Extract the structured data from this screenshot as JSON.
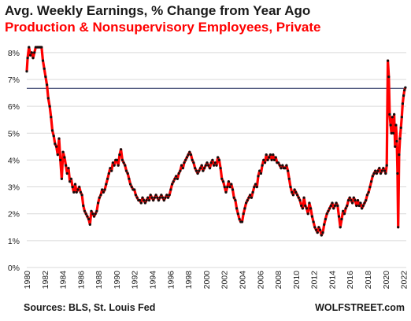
{
  "chart_data": {
    "type": "line",
    "title": "Avg. Weekly Earnings, % Change from Year Ago",
    "subtitle": "Production & Nonsupervisory  Employees, Private",
    "xlabel": "",
    "ylabel": "",
    "x_ticks": [
      "1980",
      "1982",
      "1984",
      "1986",
      "1988",
      "1990",
      "1992",
      "1994",
      "1996",
      "1998",
      "2000",
      "2002",
      "2004",
      "2006",
      "2008",
      "2010",
      "2012",
      "2014",
      "2016",
      "2018",
      "2020",
      "2022"
    ],
    "y_ticks": [
      "0%",
      "1%",
      "2%",
      "3%",
      "4%",
      "5%",
      "6%",
      "7%",
      "8%"
    ],
    "xlim": [
      1980,
      2022.3
    ],
    "ylim": [
      0,
      8.2
    ],
    "grid": "horizontal",
    "reference_line": 6.67,
    "series": [
      {
        "line_color": "#ff0000",
        "marker_color": "#111111",
        "points": [
          [
            1980.0,
            7.3
          ],
          [
            1980.1,
            7.8
          ],
          [
            1980.25,
            8.2
          ],
          [
            1980.4,
            7.9
          ],
          [
            1980.55,
            8.0
          ],
          [
            1980.7,
            7.8
          ],
          [
            1980.85,
            8.0
          ],
          [
            1981.0,
            8.3
          ],
          [
            1981.2,
            8.7
          ],
          [
            1981.35,
            8.7
          ],
          [
            1981.5,
            8.4
          ],
          [
            1981.65,
            8.3
          ],
          [
            1981.8,
            7.7
          ],
          [
            1981.95,
            7.4
          ],
          [
            1982.1,
            7.1
          ],
          [
            1982.25,
            6.8
          ],
          [
            1982.4,
            6.3
          ],
          [
            1982.55,
            6.0
          ],
          [
            1982.7,
            5.6
          ],
          [
            1982.85,
            5.1
          ],
          [
            1983.0,
            4.9
          ],
          [
            1983.15,
            4.6
          ],
          [
            1983.3,
            4.5
          ],
          [
            1983.45,
            4.2
          ],
          [
            1983.6,
            4.8
          ],
          [
            1983.75,
            4.0
          ],
          [
            1983.9,
            3.3
          ],
          [
            1984.05,
            4.3
          ],
          [
            1984.2,
            4.1
          ],
          [
            1984.35,
            3.8
          ],
          [
            1984.5,
            3.5
          ],
          [
            1984.65,
            3.7
          ],
          [
            1984.8,
            3.2
          ],
          [
            1984.95,
            3.3
          ],
          [
            1985.1,
            3.0
          ],
          [
            1985.25,
            2.8
          ],
          [
            1985.4,
            3.1
          ],
          [
            1985.55,
            2.8
          ],
          [
            1985.7,
            2.9
          ],
          [
            1985.85,
            3.0
          ],
          [
            1986.0,
            2.8
          ],
          [
            1986.15,
            2.7
          ],
          [
            1986.3,
            2.3
          ],
          [
            1986.45,
            2.1
          ],
          [
            1986.6,
            2.0
          ],
          [
            1986.75,
            1.9
          ],
          [
            1986.9,
            1.8
          ],
          [
            1987.05,
            1.6
          ],
          [
            1987.2,
            2.1
          ],
          [
            1987.35,
            2.0
          ],
          [
            1987.5,
            1.9
          ],
          [
            1987.65,
            2.0
          ],
          [
            1987.8,
            2.1
          ],
          [
            1987.95,
            2.4
          ],
          [
            1988.1,
            2.6
          ],
          [
            1988.25,
            2.7
          ],
          [
            1988.4,
            2.9
          ],
          [
            1988.55,
            2.8
          ],
          [
            1988.7,
            2.9
          ],
          [
            1988.85,
            3.1
          ],
          [
            1989.0,
            3.3
          ],
          [
            1989.15,
            3.5
          ],
          [
            1989.3,
            3.7
          ],
          [
            1989.45,
            3.6
          ],
          [
            1989.6,
            3.9
          ],
          [
            1989.75,
            3.8
          ],
          [
            1989.9,
            4.0
          ],
          [
            1990.05,
            4.0
          ],
          [
            1990.2,
            3.8
          ],
          [
            1990.35,
            4.2
          ],
          [
            1990.5,
            4.4
          ],
          [
            1990.65,
            4.0
          ],
          [
            1990.8,
            3.9
          ],
          [
            1990.95,
            3.8
          ],
          [
            1991.1,
            3.6
          ],
          [
            1991.25,
            3.5
          ],
          [
            1991.4,
            3.3
          ],
          [
            1991.55,
            3.1
          ],
          [
            1991.7,
            3.0
          ],
          [
            1991.85,
            2.9
          ],
          [
            1992.0,
            2.9
          ],
          [
            1992.15,
            2.7
          ],
          [
            1992.3,
            2.6
          ],
          [
            1992.45,
            2.5
          ],
          [
            1992.6,
            2.5
          ],
          [
            1992.75,
            2.4
          ],
          [
            1992.9,
            2.6
          ],
          [
            1993.05,
            2.5
          ],
          [
            1993.2,
            2.4
          ],
          [
            1993.35,
            2.5
          ],
          [
            1993.5,
            2.6
          ],
          [
            1993.65,
            2.5
          ],
          [
            1993.8,
            2.7
          ],
          [
            1993.95,
            2.6
          ],
          [
            1994.1,
            2.5
          ],
          [
            1994.25,
            2.6
          ],
          [
            1994.4,
            2.7
          ],
          [
            1994.55,
            2.6
          ],
          [
            1994.7,
            2.5
          ],
          [
            1994.85,
            2.6
          ],
          [
            1995.0,
            2.7
          ],
          [
            1995.15,
            2.6
          ],
          [
            1995.3,
            2.5
          ],
          [
            1995.45,
            2.6
          ],
          [
            1995.6,
            2.7
          ],
          [
            1995.75,
            2.6
          ],
          [
            1995.9,
            2.7
          ],
          [
            1996.05,
            2.9
          ],
          [
            1996.2,
            3.1
          ],
          [
            1996.35,
            3.2
          ],
          [
            1996.5,
            3.3
          ],
          [
            1996.65,
            3.4
          ],
          [
            1996.8,
            3.3
          ],
          [
            1996.95,
            3.5
          ],
          [
            1997.1,
            3.6
          ],
          [
            1997.25,
            3.8
          ],
          [
            1997.4,
            3.7
          ],
          [
            1997.55,
            3.9
          ],
          [
            1997.7,
            4.0
          ],
          [
            1997.85,
            4.1
          ],
          [
            1998.0,
            4.2
          ],
          [
            1998.15,
            4.3
          ],
          [
            1998.3,
            4.2
          ],
          [
            1998.45,
            4.0
          ],
          [
            1998.6,
            3.9
          ],
          [
            1998.75,
            3.7
          ],
          [
            1998.9,
            3.6
          ],
          [
            1999.05,
            3.5
          ],
          [
            1999.2,
            3.6
          ],
          [
            1999.35,
            3.7
          ],
          [
            1999.5,
            3.8
          ],
          [
            1999.65,
            3.6
          ],
          [
            1999.8,
            3.7
          ],
          [
            1999.95,
            3.8
          ],
          [
            2000.1,
            3.9
          ],
          [
            2000.25,
            3.8
          ],
          [
            2000.4,
            3.7
          ],
          [
            2000.55,
            3.9
          ],
          [
            2000.7,
            4.0
          ],
          [
            2000.85,
            3.8
          ],
          [
            2001.0,
            3.9
          ],
          [
            2001.15,
            3.8
          ],
          [
            2001.3,
            4.1
          ],
          [
            2001.45,
            4.0
          ],
          [
            2001.6,
            3.7
          ],
          [
            2001.75,
            3.3
          ],
          [
            2001.9,
            3.2
          ],
          [
            2002.05,
            3.0
          ],
          [
            2002.2,
            2.8
          ],
          [
            2002.35,
            3.0
          ],
          [
            2002.5,
            3.2
          ],
          [
            2002.65,
            3.0
          ],
          [
            2002.8,
            3.1
          ],
          [
            2002.95,
            2.9
          ],
          [
            2003.1,
            2.6
          ],
          [
            2003.25,
            2.5
          ],
          [
            2003.4,
            2.2
          ],
          [
            2003.55,
            2.0
          ],
          [
            2003.7,
            1.8
          ],
          [
            2003.85,
            1.7
          ],
          [
            2004.0,
            1.7
          ],
          [
            2004.15,
            2.0
          ],
          [
            2004.3,
            2.2
          ],
          [
            2004.45,
            2.4
          ],
          [
            2004.6,
            2.5
          ],
          [
            2004.75,
            2.6
          ],
          [
            2004.9,
            2.7
          ],
          [
            2005.05,
            2.6
          ],
          [
            2005.2,
            2.8
          ],
          [
            2005.35,
            3.0
          ],
          [
            2005.5,
            3.1
          ],
          [
            2005.65,
            3.0
          ],
          [
            2005.8,
            3.4
          ],
          [
            2005.95,
            3.6
          ],
          [
            2006.1,
            3.5
          ],
          [
            2006.25,
            3.8
          ],
          [
            2006.4,
            4.0
          ],
          [
            2006.55,
            3.9
          ],
          [
            2006.7,
            4.2
          ],
          [
            2006.85,
            4.0
          ],
          [
            2007.0,
            4.1
          ],
          [
            2007.15,
            4.2
          ],
          [
            2007.3,
            4.0
          ],
          [
            2007.45,
            4.2
          ],
          [
            2007.6,
            4.0
          ],
          [
            2007.75,
            4.1
          ],
          [
            2007.9,
            3.9
          ],
          [
            2008.05,
            3.9
          ],
          [
            2008.2,
            3.8
          ],
          [
            2008.35,
            3.7
          ],
          [
            2008.5,
            3.8
          ],
          [
            2008.65,
            3.7
          ],
          [
            2008.8,
            3.7
          ],
          [
            2008.95,
            3.8
          ],
          [
            2009.1,
            3.6
          ],
          [
            2009.25,
            3.3
          ],
          [
            2009.4,
            3.0
          ],
          [
            2009.55,
            2.8
          ],
          [
            2009.7,
            2.7
          ],
          [
            2009.85,
            2.9
          ],
          [
            2010.0,
            2.8
          ],
          [
            2010.15,
            2.7
          ],
          [
            2010.3,
            2.6
          ],
          [
            2010.45,
            2.5
          ],
          [
            2010.6,
            2.3
          ],
          [
            2010.75,
            2.2
          ],
          [
            2010.9,
            2.6
          ],
          [
            2011.05,
            2.3
          ],
          [
            2011.2,
            2.2
          ],
          [
            2011.35,
            2.0
          ],
          [
            2011.5,
            2.4
          ],
          [
            2011.65,
            2.2
          ],
          [
            2011.8,
            1.9
          ],
          [
            2011.95,
            1.7
          ],
          [
            2012.1,
            1.5
          ],
          [
            2012.25,
            1.4
          ],
          [
            2012.4,
            1.3
          ],
          [
            2012.55,
            1.5
          ],
          [
            2012.7,
            1.4
          ],
          [
            2012.85,
            1.2
          ],
          [
            2013.0,
            1.3
          ],
          [
            2013.15,
            1.6
          ],
          [
            2013.3,
            1.8
          ],
          [
            2013.45,
            2.0
          ],
          [
            2013.6,
            2.1
          ],
          [
            2013.75,
            2.2
          ],
          [
            2013.9,
            2.3
          ],
          [
            2014.05,
            2.4
          ],
          [
            2014.2,
            2.2
          ],
          [
            2014.35,
            2.3
          ],
          [
            2014.5,
            2.4
          ],
          [
            2014.65,
            2.3
          ],
          [
            2014.8,
            1.9
          ],
          [
            2014.95,
            1.5
          ],
          [
            2015.1,
            1.8
          ],
          [
            2015.25,
            2.1
          ],
          [
            2015.4,
            2.0
          ],
          [
            2015.55,
            2.2
          ],
          [
            2015.7,
            2.3
          ],
          [
            2015.85,
            2.5
          ],
          [
            2016.0,
            2.6
          ],
          [
            2016.15,
            2.5
          ],
          [
            2016.3,
            2.4
          ],
          [
            2016.45,
            2.6
          ],
          [
            2016.6,
            2.5
          ],
          [
            2016.75,
            2.3
          ],
          [
            2016.9,
            2.5
          ],
          [
            2017.05,
            2.3
          ],
          [
            2017.2,
            2.4
          ],
          [
            2017.35,
            2.2
          ],
          [
            2017.5,
            2.3
          ],
          [
            2017.65,
            2.4
          ],
          [
            2017.8,
            2.5
          ],
          [
            2017.95,
            2.7
          ],
          [
            2018.1,
            2.8
          ],
          [
            2018.25,
            3.0
          ],
          [
            2018.4,
            3.2
          ],
          [
            2018.55,
            3.4
          ],
          [
            2018.7,
            3.5
          ],
          [
            2018.85,
            3.6
          ],
          [
            2019.0,
            3.5
          ],
          [
            2019.15,
            3.6
          ],
          [
            2019.3,
            3.7
          ],
          [
            2019.45,
            3.5
          ],
          [
            2019.6,
            3.6
          ],
          [
            2019.75,
            3.7
          ],
          [
            2019.9,
            3.6
          ],
          [
            2020.0,
            3.5
          ],
          [
            2020.12,
            3.8
          ],
          [
            2020.25,
            7.7
          ],
          [
            2020.35,
            7.1
          ],
          [
            2020.45,
            5.7
          ],
          [
            2020.55,
            5.3
          ],
          [
            2020.65,
            5.0
          ],
          [
            2020.75,
            5.6
          ],
          [
            2020.85,
            5.0
          ],
          [
            2020.95,
            5.7
          ],
          [
            2021.05,
            4.5
          ],
          [
            2021.15,
            5.3
          ],
          [
            2021.25,
            4.7
          ],
          [
            2021.33,
            3.5
          ],
          [
            2021.4,
            1.5
          ],
          [
            2021.5,
            4.2
          ],
          [
            2021.6,
            4.8
          ],
          [
            2021.7,
            5.2
          ],
          [
            2021.8,
            5.6
          ],
          [
            2021.9,
            6.1
          ],
          [
            2022.0,
            6.4
          ],
          [
            2022.1,
            6.6
          ],
          [
            2022.2,
            6.7
          ]
        ]
      }
    ]
  },
  "footer": {
    "source": "Sources: BLS, St. Louis Fed",
    "brand": "WOLFSTREET.com"
  },
  "colors": {
    "subtitle": "#ff0000",
    "line": "#ff0000",
    "marker": "#111111",
    "grid": "#d9d9d9",
    "reference": "#1f2a5a"
  }
}
